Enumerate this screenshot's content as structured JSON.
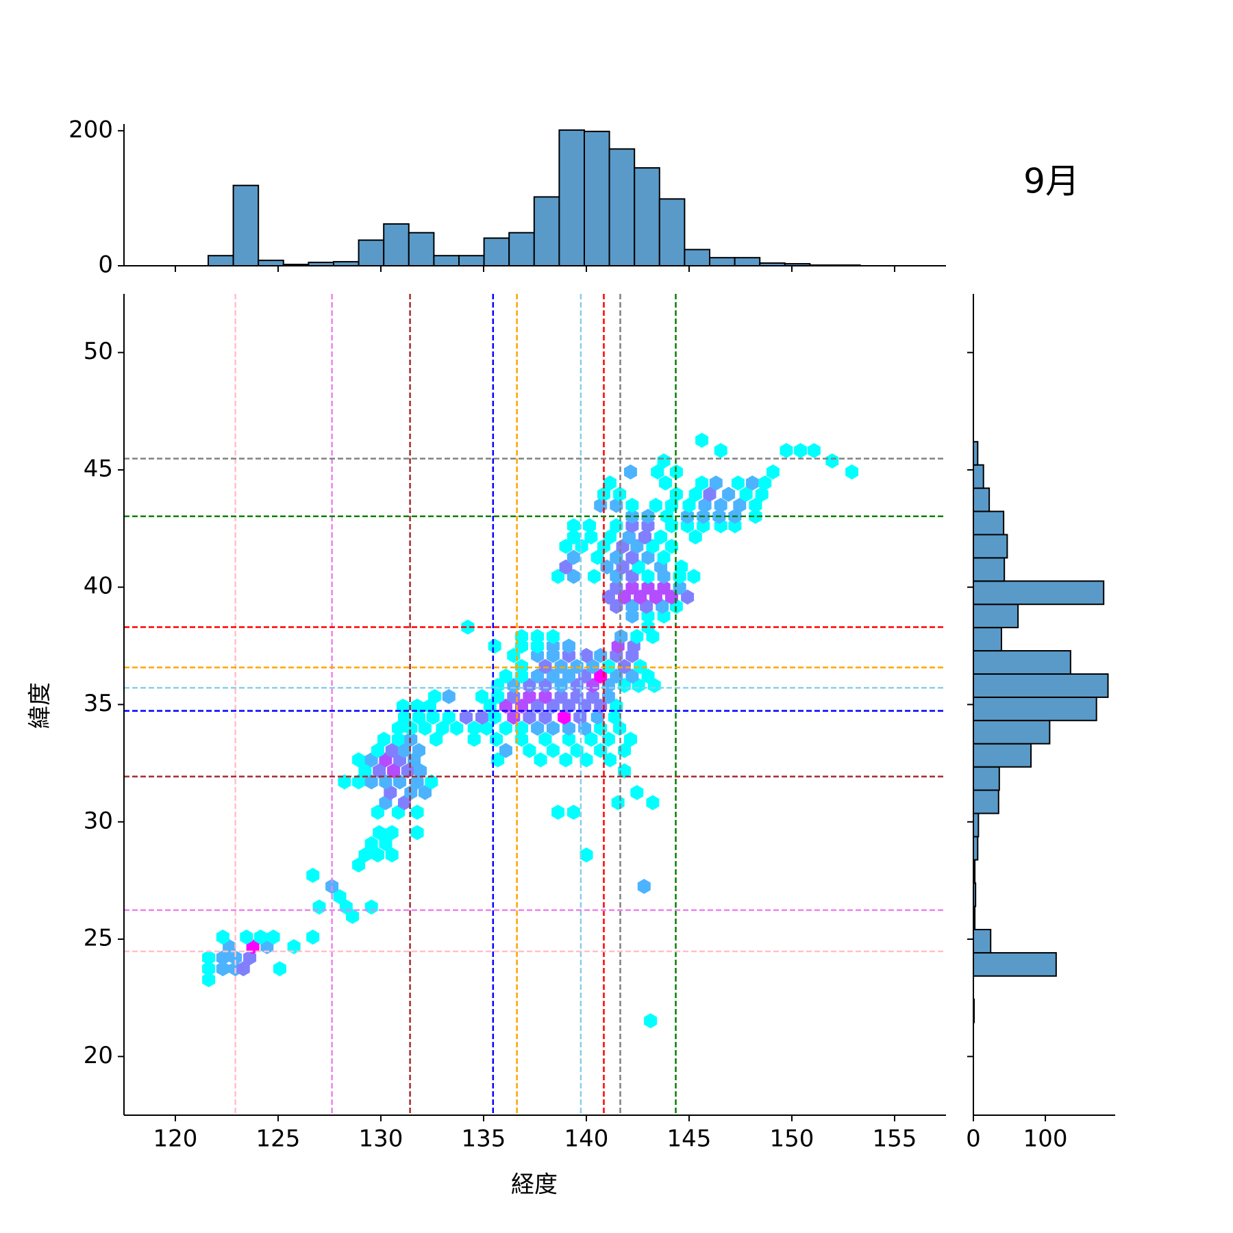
{
  "chart_data": [
    {
      "type": "hexbin",
      "title": "9月",
      "x_label": "経度",
      "y_label": "緯度",
      "xlim": [
        117.5,
        157.5
      ],
      "xticks": [
        120,
        125,
        130,
        135,
        140,
        145,
        150,
        155
      ],
      "ylim": [
        17.5,
        52.5
      ],
      "yticks": [
        20,
        25,
        30,
        35,
        40,
        45,
        50
      ],
      "cmap": "cool",
      "x": [
        121.62,
        121.62,
        122.31,
        122.92,
        123.31,
        125.08,
        121.62,
        122.31,
        122.92,
        123.62,
        122.62,
        123.77,
        124.46,
        125.77,
        122.31,
        123.46,
        124.15,
        124.77,
        126.69,
        128.62,
        127.0,
        128.31,
        129.54,
        128.0,
        127.62,
        142.81,
        126.69,
        128.92,
        129.23,
        129.85,
        130.54,
        140.0,
        129.54,
        130.23,
        129.92,
        130.54,
        131.77,
        129.85,
        130.85,
        131.77,
        138.62,
        139.38,
        130.23,
        131.15,
        141.54,
        143.23,
        130.46,
        131.46,
        132.15,
        142.46,
        128.23,
        128.92,
        129.54,
        130.23,
        130.92,
        131.77,
        132.46,
        129.23,
        129.92,
        130.62,
        131.31,
        131.92,
        141.85,
        128.92,
        129.54,
        130.23,
        130.92,
        131.62,
        135.69,
        137.77,
        139.0,
        140.0,
        141.15,
        129.85,
        130.54,
        131.15,
        131.85,
        136.08,
        137.23,
        138.38,
        139.54,
        140.69,
        141.85,
        130.15,
        130.85,
        131.46,
        132.69,
        134.54,
        135.62,
        136.85,
        138.0,
        139.15,
        140.23,
        141.08,
        142.15,
        130.85,
        131.46,
        132.15,
        133.0,
        133.69,
        134.54,
        135.15,
        136.08,
        136.85,
        137.62,
        138.38,
        139.15,
        139.92,
        140.69,
        141.62,
        131.15,
        131.85,
        132.54,
        133.31,
        134.15,
        134.92,
        135.54,
        136.46,
        137.23,
        138.0,
        138.92,
        139.69,
        140.54,
        141.38,
        131.08,
        131.77,
        132.38,
        135.31,
        136.08,
        136.85,
        137.62,
        138.38,
        139.15,
        139.92,
        140.69,
        141.46,
        132.62,
        133.31,
        134.92,
        135.69,
        136.46,
        137.23,
        138.0,
        138.77,
        139.54,
        140.31,
        141.08,
        135.69,
        136.46,
        137.23,
        138.0,
        138.77,
        139.54,
        140.31,
        141.08,
        141.85,
        142.54,
        143.31,
        136.08,
        136.85,
        137.62,
        138.38,
        139.15,
        139.92,
        140.69,
        141.46,
        142.23,
        143.0,
        136.85,
        138.0,
        138.77,
        139.54,
        140.31,
        141.08,
        141.85,
        142.62,
        136.46,
        137.62,
        138.38,
        139.15,
        140.0,
        140.69,
        141.46,
        142.23,
        135.54,
        136.85,
        137.62,
        138.38,
        139.15,
        141.54,
        142.31,
        136.85,
        137.62,
        138.38,
        141.69,
        142.46,
        143.23,
        134.23,
        143.0,
        142.23,
        143.0,
        143.77,
        141.46,
        142.23,
        142.92,
        143.69,
        144.38,
        141.08,
        141.85,
        142.62,
        143.38,
        144.15,
        144.92,
        141.46,
        142.23,
        143.0,
        143.77,
        144.54,
        138.62,
        139.38,
        140.38,
        141.46,
        142.23,
        143.0,
        143.77,
        144.54,
        145.23,
        139.0,
        141.0,
        141.77,
        142.54,
        143.62,
        144.62,
        139.38,
        140.54,
        141.46,
        142.23,
        143.0,
        143.77,
        139.0,
        139.77,
        140.85,
        141.77,
        142.46,
        143.23,
        144.15,
        139.38,
        140.23,
        141.15,
        142.08,
        142.85,
        143.62,
        145.31,
        139.38,
        140.15,
        141.46,
        142.23,
        143.0,
        144.15,
        144.92,
        145.69,
        146.54,
        147.23,
        142.23,
        143.0,
        143.92,
        144.92,
        145.69,
        146.46,
        147.23,
        148.23,
        140.69,
        141.46,
        142.23,
        143.38,
        144.15,
        145.0,
        145.77,
        146.54,
        147.46,
        148.23,
        140.85,
        141.62,
        144.38,
        145.31,
        146.0,
        146.92,
        147.77,
        148.54,
        141.15,
        143.85,
        145.62,
        146.31,
        147.38,
        148.08,
        148.69,
        142.15,
        143.46,
        144.38,
        149.08,
        152.92,
        143.77,
        151.96,
        146.54,
        149.73,
        150.42,
        151.08,
        145.62,
        143.12
      ],
      "y": [
        23.27,
        23.74,
        23.74,
        23.74,
        23.74,
        23.74,
        24.21,
        24.21,
        24.21,
        24.21,
        24.68,
        24.68,
        24.68,
        24.68,
        25.09,
        25.09,
        25.09,
        25.09,
        25.09,
        25.97,
        26.37,
        26.37,
        26.37,
        26.81,
        27.25,
        27.25,
        27.72,
        28.16,
        28.59,
        28.59,
        28.59,
        28.59,
        29.07,
        29.07,
        29.54,
        29.54,
        29.54,
        30.41,
        30.41,
        30.41,
        30.41,
        30.41,
        30.82,
        30.82,
        30.82,
        30.82,
        31.25,
        31.25,
        31.25,
        31.25,
        31.7,
        31.7,
        31.7,
        31.7,
        31.7,
        31.7,
        31.7,
        32.17,
        32.17,
        32.17,
        32.17,
        32.17,
        32.17,
        32.64,
        32.64,
        32.64,
        32.64,
        32.64,
        32.64,
        32.64,
        32.64,
        32.64,
        32.64,
        33.04,
        33.04,
        33.04,
        33.04,
        33.04,
        33.04,
        33.04,
        33.04,
        33.04,
        33.04,
        33.52,
        33.52,
        33.52,
        33.52,
        33.52,
        33.52,
        33.52,
        33.52,
        33.52,
        33.52,
        33.52,
        33.52,
        33.99,
        33.99,
        33.99,
        33.99,
        33.99,
        33.99,
        33.99,
        33.99,
        33.99,
        33.99,
        33.99,
        33.99,
        33.99,
        33.99,
        33.99,
        34.46,
        34.46,
        34.46,
        34.46,
        34.46,
        34.46,
        34.46,
        34.46,
        34.46,
        34.46,
        34.46,
        34.46,
        34.46,
        34.46,
        34.93,
        34.93,
        34.93,
        34.93,
        34.93,
        34.93,
        34.93,
        34.93,
        34.93,
        34.93,
        34.93,
        34.93,
        35.34,
        35.34,
        35.34,
        35.34,
        35.34,
        35.34,
        35.34,
        35.34,
        35.34,
        35.34,
        35.34,
        35.81,
        35.81,
        35.81,
        35.81,
        35.81,
        35.81,
        35.81,
        35.81,
        35.81,
        35.81,
        35.81,
        36.21,
        36.21,
        36.21,
        36.21,
        36.21,
        36.21,
        36.21,
        36.21,
        36.21,
        36.21,
        36.62,
        36.62,
        36.62,
        36.62,
        36.62,
        36.62,
        36.62,
        36.62,
        37.09,
        37.09,
        37.09,
        37.09,
        37.09,
        37.09,
        37.09,
        37.09,
        37.49,
        37.49,
        37.49,
        37.49,
        37.49,
        37.49,
        37.49,
        37.9,
        37.9,
        37.9,
        37.9,
        37.9,
        37.9,
        38.3,
        38.3,
        38.77,
        38.77,
        38.77,
        39.18,
        39.18,
        39.18,
        39.18,
        39.18,
        39.58,
        39.58,
        39.58,
        39.58,
        39.58,
        39.58,
        39.99,
        39.99,
        39.99,
        39.99,
        39.99,
        40.46,
        40.46,
        40.46,
        40.46,
        40.46,
        40.46,
        40.46,
        40.46,
        40.46,
        40.86,
        40.86,
        40.86,
        40.86,
        40.86,
        40.86,
        41.27,
        41.27,
        41.27,
        41.27,
        41.27,
        41.27,
        41.74,
        41.74,
        41.74,
        41.74,
        41.74,
        41.74,
        41.74,
        42.14,
        42.14,
        42.14,
        42.14,
        42.14,
        42.14,
        42.14,
        42.62,
        42.62,
        42.62,
        42.62,
        42.62,
        42.62,
        42.62,
        42.62,
        42.62,
        42.62,
        43.02,
        43.02,
        43.02,
        43.02,
        43.02,
        43.02,
        43.02,
        43.02,
        43.49,
        43.49,
        43.49,
        43.49,
        43.49,
        43.49,
        43.49,
        43.49,
        43.49,
        43.49,
        43.96,
        43.96,
        43.96,
        43.96,
        43.96,
        43.96,
        43.96,
        43.96,
        44.44,
        44.44,
        44.44,
        44.44,
        44.44,
        44.44,
        44.44,
        44.91,
        44.91,
        44.91,
        44.91,
        44.91,
        45.38,
        45.38,
        45.82,
        45.82,
        45.82,
        45.82,
        46.26,
        21.52
      ],
      "counts": [
        1,
        1,
        4,
        4,
        6,
        1,
        1,
        4,
        4,
        6,
        4,
        11,
        4,
        1,
        1,
        1,
        1,
        1,
        1,
        1,
        1,
        1,
        1,
        1,
        4,
        4,
        1,
        1,
        1,
        1,
        1,
        1,
        1,
        1,
        1,
        1,
        1,
        1,
        1,
        1,
        1,
        1,
        4,
        6,
        1,
        1,
        6,
        4,
        4,
        1,
        1,
        1,
        4,
        4,
        4,
        4,
        1,
        1,
        6,
        8,
        6,
        4,
        1,
        1,
        4,
        8,
        6,
        4,
        1,
        1,
        1,
        1,
        1,
        1,
        6,
        4,
        4,
        4,
        1,
        1,
        1,
        1,
        1,
        1,
        1,
        4,
        1,
        1,
        1,
        1,
        1,
        1,
        1,
        1,
        1,
        1,
        1,
        1,
        1,
        1,
        1,
        1,
        1,
        1,
        4,
        4,
        4,
        4,
        1,
        1,
        1,
        1,
        1,
        1,
        6,
        6,
        1,
        8,
        6,
        6,
        11,
        6,
        4,
        1,
        1,
        1,
        1,
        1,
        8,
        8,
        6,
        6,
        6,
        6,
        6,
        1,
        1,
        4,
        1,
        1,
        6,
        8,
        8,
        6,
        6,
        6,
        4,
        1,
        4,
        6,
        6,
        4,
        6,
        8,
        4,
        1,
        1,
        1,
        1,
        1,
        4,
        4,
        4,
        6,
        11,
        4,
        4,
        1,
        1,
        6,
        4,
        4,
        4,
        1,
        6,
        1,
        1,
        4,
        4,
        6,
        6,
        4,
        6,
        6,
        1,
        1,
        1,
        4,
        4,
        8,
        6,
        1,
        1,
        1,
        4,
        1,
        1,
        1,
        1,
        4,
        1,
        1,
        6,
        4,
        6,
        4,
        1,
        6,
        8,
        8,
        8,
        8,
        6,
        6,
        8,
        8,
        8,
        4,
        1,
        4,
        1,
        4,
        6,
        1,
        4,
        1,
        1,
        6,
        4,
        6,
        1,
        4,
        1,
        4,
        1,
        4,
        6,
        4,
        1,
        1,
        1,
        1,
        6,
        4,
        1,
        1,
        1,
        1,
        1,
        4,
        6,
        1,
        1,
        1,
        1,
        1,
        6,
        6,
        1,
        1,
        1,
        1,
        1,
        4,
        4,
        1,
        4,
        4,
        4,
        4,
        1,
        4,
        4,
        1,
        1,
        1,
        1,
        4,
        4,
        4,
        1,
        1,
        1,
        1,
        1,
        6,
        4,
        1,
        1,
        1,
        1,
        1,
        4,
        1,
        4,
        1,
        4,
        1,
        1,
        1,
        1,
        1,
        1,
        1,
        1,
        1,
        1,
        1,
        1
      ],
      "vlines": [
        {
          "value": 122.92,
          "color": "pink"
        },
        {
          "value": 127.62,
          "color": "violet"
        },
        {
          "value": 131.42,
          "color": "brown"
        },
        {
          "value": 135.46,
          "color": "blue"
        },
        {
          "value": 136.62,
          "color": "orange"
        },
        {
          "value": 139.73,
          "color": "skyblue"
        },
        {
          "value": 140.85,
          "color": "red"
        },
        {
          "value": 141.65,
          "color": "gray"
        },
        {
          "value": 144.35,
          "color": "green"
        }
      ],
      "hlines": [
        {
          "value": 45.48,
          "color": "gray"
        },
        {
          "value": 43.02,
          "color": "green"
        },
        {
          "value": 38.3,
          "color": "red"
        },
        {
          "value": 36.58,
          "color": "orange"
        },
        {
          "value": 35.71,
          "color": "skyblue"
        },
        {
          "value": 34.73,
          "color": "blue"
        },
        {
          "value": 31.93,
          "color": "brown"
        },
        {
          "value": 26.24,
          "color": "violet"
        },
        {
          "value": 24.48,
          "color": "pink"
        }
      ]
    },
    {
      "type": "histogram",
      "orientation": "vertical",
      "color": "#5a9ac8",
      "bins": [
        121.6,
        122.82,
        124.04,
        125.26,
        126.48,
        127.7,
        128.92,
        130.14,
        131.36,
        132.58,
        133.8,
        135.02,
        136.24,
        137.46,
        138.68,
        139.9,
        141.12,
        142.34,
        143.56,
        144.78,
        146,
        147.22,
        148.44,
        149.66,
        150.88,
        152.1,
        153.32
      ],
      "values": [
        15,
        119,
        8,
        2,
        5,
        6,
        38,
        62,
        49,
        15,
        15,
        41,
        49,
        102,
        201,
        199,
        173,
        145,
        99,
        24,
        12,
        12,
        4,
        3,
        1,
        1
      ],
      "ylim": [
        0,
        210
      ],
      "yticks": [
        0,
        200
      ]
    },
    {
      "type": "histogram",
      "orientation": "horizontal",
      "color": "#5a9ac8",
      "bins": [
        21.45,
        22.44,
        23.43,
        24.42,
        25.41,
        26.4,
        27.39,
        28.38,
        29.37,
        30.36,
        31.35,
        32.34,
        33.33,
        34.32,
        35.31,
        36.3,
        37.29,
        38.28,
        39.27,
        40.26,
        41.25,
        42.24,
        43.23,
        44.22,
        45.21,
        46.2
      ],
      "values": [
        1,
        0,
        115,
        24,
        2,
        3,
        2,
        6,
        7,
        35,
        36,
        80,
        106,
        171,
        187,
        135,
        39,
        62,
        181,
        43,
        47,
        42,
        22,
        14,
        6
      ],
      "xlim": [
        0,
        197
      ],
      "xticks": [
        0,
        100
      ]
    }
  ]
}
